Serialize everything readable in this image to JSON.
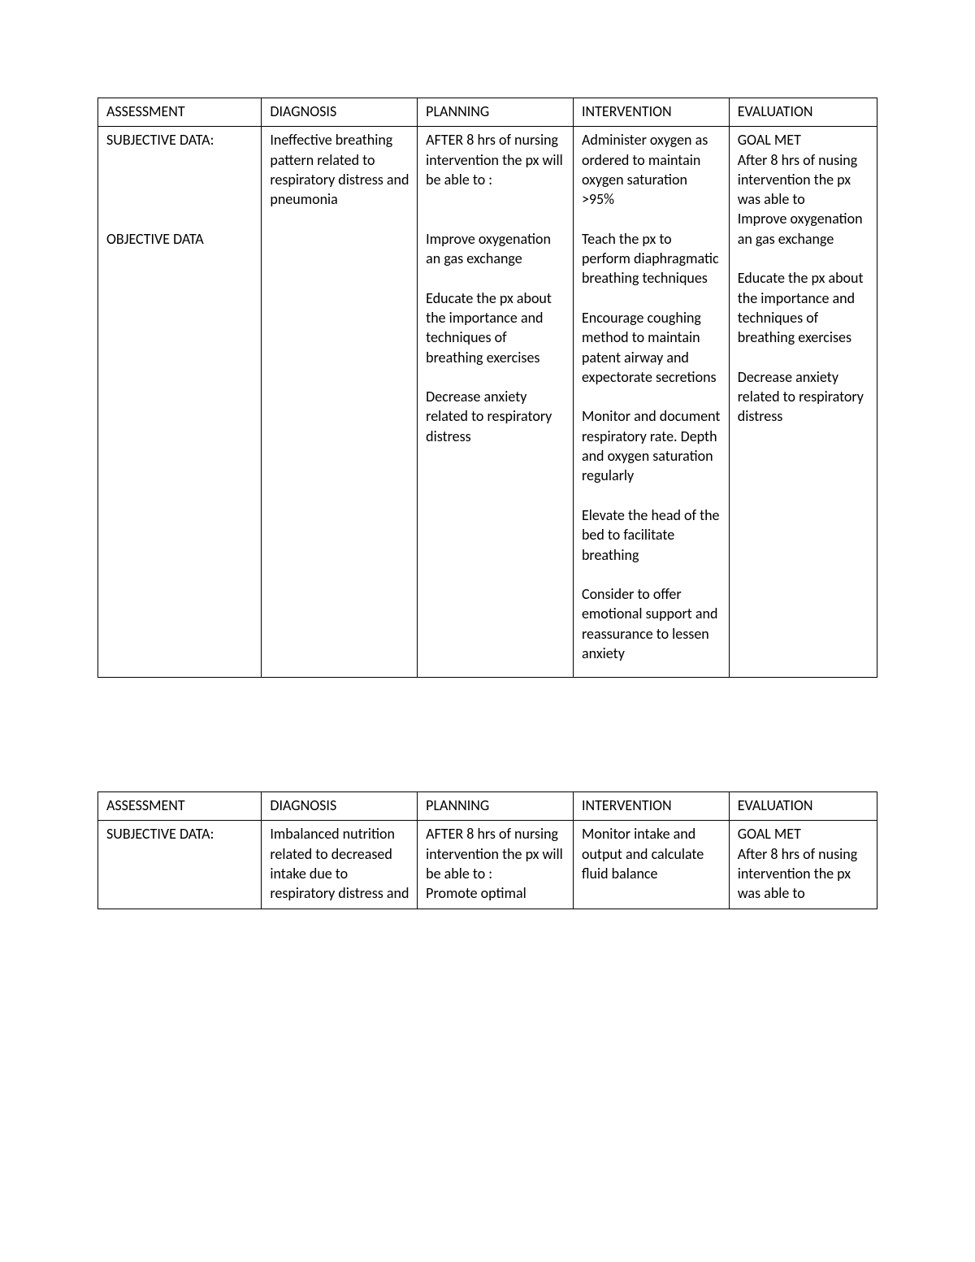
{
  "tables": [
    {
      "headers": [
        "ASSESSMENT",
        "DIAGNOSIS",
        "PLANNING",
        "INTERVENTION",
        "EVALUATION"
      ],
      "row": {
        "assessment": [
          "SUBJECTIVE DATA:",
          "",
          "",
          "",
          "",
          "OBJECTIVE DATA"
        ],
        "diagnosis": "Ineffective breathing pattern related to respiratory distress and pneumonia",
        "planning": [
          "AFTER 8 hrs of nursing intervention the px will be able to :",
          "Improve oxygenation an gas exchange",
          "Educate the px about the importance  and techniques of breathing exercises",
          "Decrease anxiety related to respiratory distress"
        ],
        "intervention": [
          "Administer oxygen as ordered to maintain oxygen saturation >95%",
          "Teach the px to perform diaphragmatic breathing techniques",
          "Encourage coughing method to maintain patent airway and expectorate secretions",
          "Monitor and document respiratory rate. Depth and oxygen saturation regularly",
          "Elevate the head of the bed to facilitate breathing",
          "Consider to offer emotional support and reassurance to lessen anxiety"
        ],
        "evaluation": [
          "GOAL MET",
          "After 8 hrs of nusing intervention the px was able to",
          "Improve oxygenation an gas exchange",
          "Educate the px about the importance  and techniques of breathing exercises",
          "Decrease anxiety related to respiratory distress"
        ]
      }
    },
    {
      "headers": [
        "ASSESSMENT",
        "DIAGNOSIS",
        "PLANNING",
        "INTERVENTION",
        "EVALUATION"
      ],
      "row": {
        "assessment": "SUBJECTIVE DATA:",
        "diagnosis": "Imbalanced nutrition related to decreased intake due to respiratory distress and",
        "planning": [
          "AFTER 8 hrs of nursing intervention the px will be able to :",
          "Promote optimal"
        ],
        "intervention": "Monitor intake and output and calculate fluid balance",
        "evaluation": [
          "GOAL MET",
          "After 8 hrs of nusing intervention the px was able to"
        ]
      }
    }
  ]
}
